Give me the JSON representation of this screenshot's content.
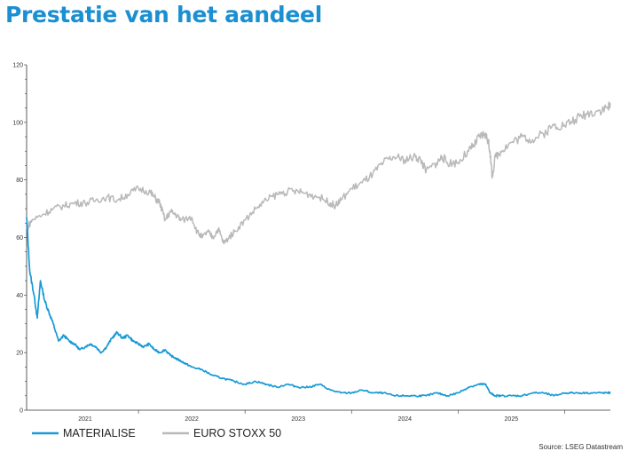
{
  "page": {
    "title": "Prestatie van het aandeel",
    "source": "Source: LSEG Datastream"
  },
  "colors": {
    "materialise": "#1a9ad6",
    "eurostoxx": "#b9b9b9",
    "title": "#1a8fd1"
  },
  "chart_data": {
    "type": "line",
    "title": "Prestatie van het aandeel",
    "xlabel": "",
    "ylabel": "",
    "xlim": [
      2020.45,
      2025.93
    ],
    "ylim": [
      0,
      120
    ],
    "yticks": [
      0,
      20,
      40,
      60,
      80,
      100,
      120
    ],
    "xticks": [
      {
        "label": "2021",
        "x": 2021.0
      },
      {
        "label": "2022",
        "x": 2022.0
      },
      {
        "label": "2023",
        "x": 2023.0
      },
      {
        "label": "2024",
        "x": 2024.0
      },
      {
        "label": "2025",
        "x": 2025.0
      }
    ],
    "grid": false,
    "legend": "bottom-left",
    "series": [
      {
        "name": "MATERIALISE",
        "color": "#1a9ad6",
        "x": [
          2020.45,
          2020.48,
          2020.52,
          2020.55,
          2020.58,
          2020.62,
          2020.66,
          2020.7,
          2020.75,
          2020.8,
          2020.85,
          2020.9,
          2020.95,
          2021.0,
          2021.05,
          2021.1,
          2021.15,
          2021.2,
          2021.25,
          2021.3,
          2021.35,
          2021.4,
          2021.45,
          2021.5,
          2021.55,
          2021.6,
          2021.65,
          2021.7,
          2021.75,
          2021.8,
          2021.85,
          2021.9,
          2021.95,
          2022.0,
          2022.1,
          2022.2,
          2022.3,
          2022.4,
          2022.5,
          2022.6,
          2022.7,
          2022.8,
          2022.9,
          2023.0,
          2023.1,
          2023.2,
          2023.3,
          2023.4,
          2023.5,
          2023.6,
          2023.7,
          2023.8,
          2023.9,
          2024.0,
          2024.1,
          2024.2,
          2024.3,
          2024.4,
          2024.5,
          2024.6,
          2024.7,
          2024.73,
          2024.76,
          2024.8,
          2024.85,
          2024.9,
          2025.0,
          2025.1,
          2025.2,
          2025.3,
          2025.4,
          2025.5,
          2025.6,
          2025.7,
          2025.8,
          2025.9,
          2025.93
        ],
        "values": [
          67,
          48,
          40,
          32,
          45,
          38,
          34,
          30,
          24,
          26,
          24,
          23,
          21,
          22,
          23,
          22,
          20,
          22,
          25,
          27,
          25,
          26,
          24,
          23,
          22,
          23,
          21,
          20,
          21,
          19,
          18,
          17,
          16,
          15,
          14,
          12,
          11,
          10,
          9,
          10,
          9,
          8,
          9,
          8,
          8,
          9,
          7,
          6,
          6,
          7,
          6,
          6,
          5,
          5,
          5,
          5,
          6,
          5,
          6,
          8,
          9,
          9,
          9,
          6,
          5,
          5,
          5,
          5,
          6,
          6,
          5,
          6,
          6,
          6,
          6,
          6,
          6
        ]
      },
      {
        "name": "EURO STOXX 50",
        "color": "#b9b9b9",
        "x": [
          2020.45,
          2020.5,
          2020.6,
          2020.7,
          2020.8,
          2020.9,
          2021.0,
          2021.1,
          2021.2,
          2021.3,
          2021.4,
          2021.5,
          2021.6,
          2021.65,
          2021.7,
          2021.75,
          2021.8,
          2021.85,
          2021.9,
          2022.0,
          2022.05,
          2022.1,
          2022.15,
          2022.2,
          2022.25,
          2022.3,
          2022.35,
          2022.4,
          2022.5,
          2022.6,
          2022.7,
          2022.8,
          2022.9,
          2023.0,
          2023.1,
          2023.2,
          2023.3,
          2023.35,
          2023.4,
          2023.5,
          2023.6,
          2023.7,
          2023.8,
          2023.9,
          2024.0,
          2024.1,
          2024.15,
          2024.2,
          2024.3,
          2024.35,
          2024.4,
          2024.5,
          2024.6,
          2024.65,
          2024.7,
          2024.75,
          2024.78,
          2024.8,
          2024.82,
          2024.85,
          2024.9,
          2025.0,
          2025.1,
          2025.2,
          2025.3,
          2025.4,
          2025.5,
          2025.6,
          2025.7,
          2025.8,
          2025.9,
          2025.93
        ],
        "values": [
          63,
          66,
          68,
          70,
          71,
          72,
          72,
          73,
          74,
          73,
          75,
          77,
          76,
          74,
          72,
          66,
          69,
          68,
          66,
          67,
          62,
          60,
          62,
          60,
          63,
          58,
          60,
          62,
          66,
          70,
          73,
          75,
          76,
          76,
          75,
          74,
          72,
          71,
          73,
          77,
          79,
          82,
          86,
          88,
          87,
          88,
          87,
          83,
          86,
          88,
          86,
          86,
          90,
          92,
          95,
          96,
          94,
          90,
          81,
          88,
          90,
          93,
          95,
          94,
          96,
          99,
          99,
          101,
          103,
          104,
          105,
          106
        ]
      }
    ]
  }
}
